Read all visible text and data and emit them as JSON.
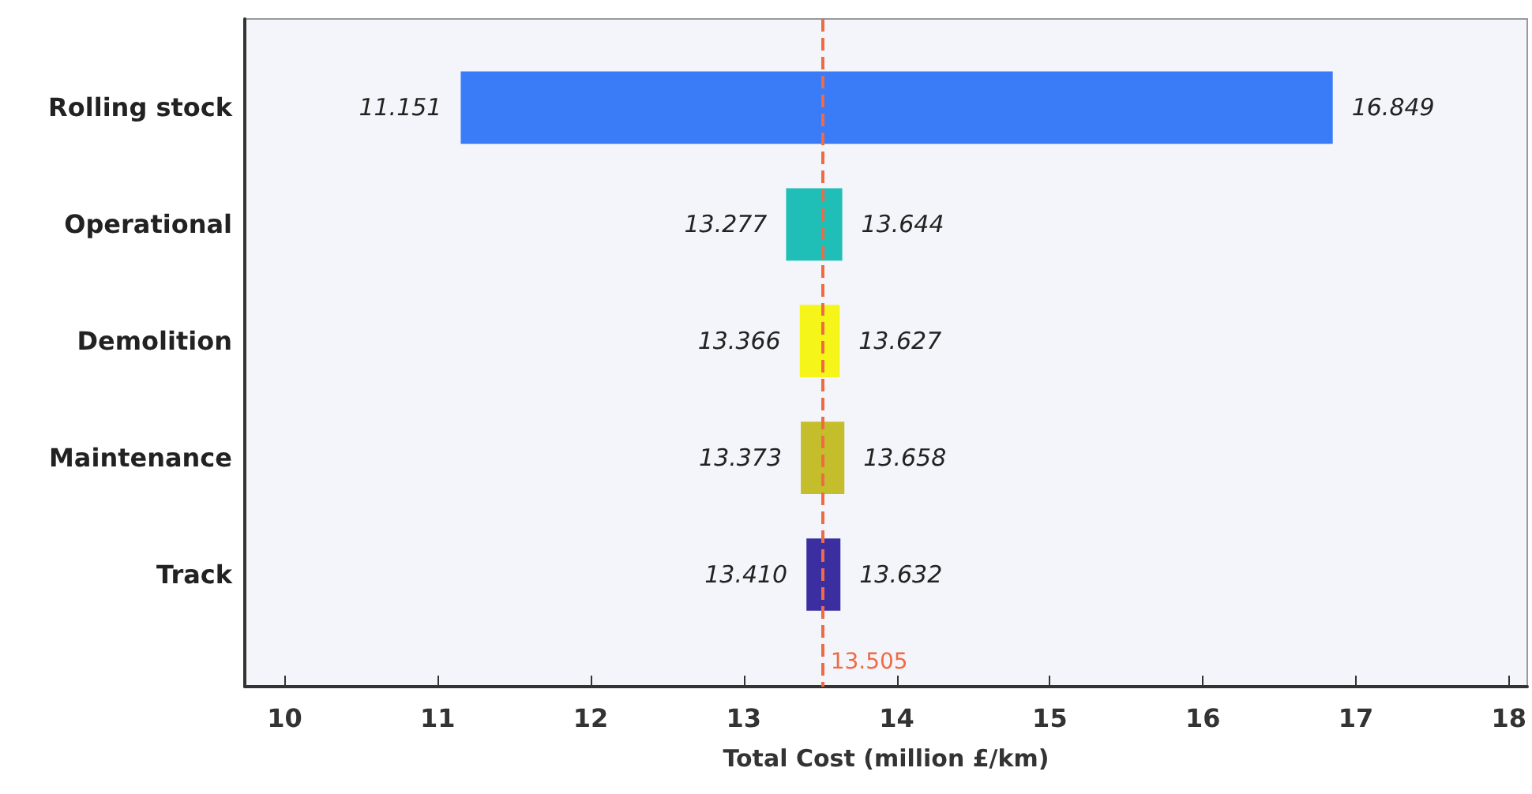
{
  "chart_data": {
    "type": "bar",
    "orientation": "horizontal",
    "xlabel": "Total Cost (million £/km)",
    "categories": [
      "Rolling stock",
      "Operational",
      "Demolition",
      "Maintenance",
      "Track"
    ],
    "base": [
      11.151,
      13.277,
      13.366,
      13.373,
      13.41
    ],
    "values": [
      5.698,
      0.367,
      0.261,
      0.285,
      0.222
    ],
    "colors": [
      "#3a7cf8",
      "#1fbfb8",
      "#f5f51a",
      "#c4be2c",
      "#3a2ea0"
    ],
    "xlim": [
      9.74,
      18.12
    ],
    "xticks": [
      10,
      11,
      12,
      13,
      14,
      15,
      16,
      17,
      18
    ],
    "grid": false,
    "ref_lines": [
      {
        "axis": "x",
        "value": 13.505,
        "label": "13.505",
        "color": "#f06a45",
        "line_style": "dashed"
      }
    ],
    "annotations": [
      {
        "text": "11.151",
        "x": 11.151,
        "y": "Rolling stock"
      },
      {
        "text": "16.849",
        "x": 16.849,
        "y": "Rolling stock"
      },
      {
        "text": "13.277",
        "x": 13.277,
        "y": "Operational"
      },
      {
        "text": "13.644",
        "x": 13.644,
        "y": "Operational"
      },
      {
        "text": "13.366",
        "x": 13.366,
        "y": "Demolition"
      },
      {
        "text": "13.627",
        "x": 13.627,
        "y": "Demolition"
      },
      {
        "text": "13.373",
        "x": 13.373,
        "y": "Maintenance"
      },
      {
        "text": "13.658",
        "x": 13.658,
        "y": "Maintenance"
      },
      {
        "text": "13.410",
        "x": 13.41,
        "y": "Track"
      },
      {
        "text": "13.632",
        "x": 13.632,
        "y": "Track"
      }
    ]
  }
}
